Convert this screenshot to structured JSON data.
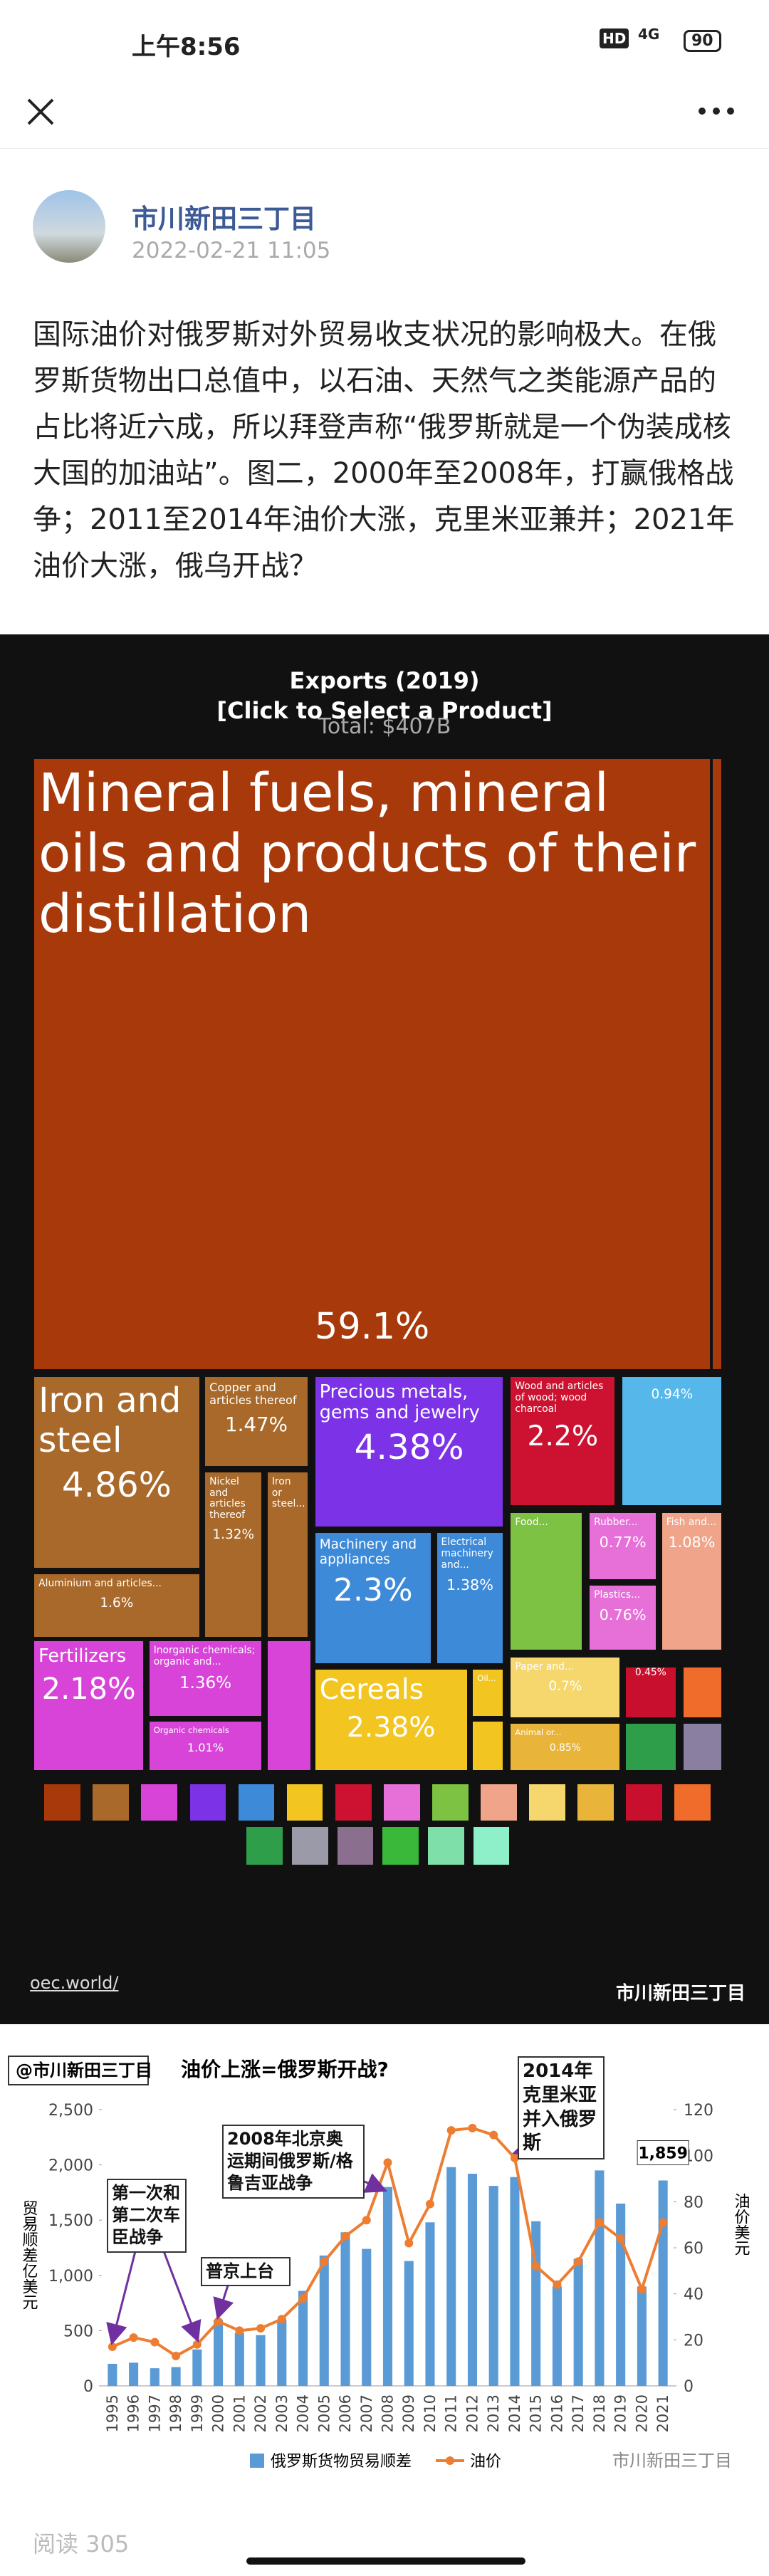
{
  "status_bar": {
    "time": "上午8:56",
    "hd": "HD",
    "network": "4G",
    "battery": "90"
  },
  "header": {
    "author": "市川新田三丁目",
    "date": "2022-02-21 11:05"
  },
  "article": {
    "text": "国际油价对俄罗斯对外贸易收支状况的影响极大。在俄罗斯货物出口总值中，以石油、天然气之类能源产品的占比将近六成，所以拜登声称“俄罗斯就是一个伪装成核大国的加油站”。图二，2000年至2008年，打赢俄格战争；2011至2014年油价大涨，克里米亚兼并；2021年油价大涨，俄乌开战？"
  },
  "treemap": {
    "title": "Exports (2019)",
    "subtitle": "[Click to Select a Product]",
    "total": "Total: $407B",
    "tiles": [
      {
        "label": "Mineral fuels, mineral oils and products of their distillation",
        "share": "59.1%"
      },
      {
        "label": "Iron and steel",
        "share": "4.86%"
      },
      {
        "label": "Aluminium and articles...",
        "share": "1.6%"
      },
      {
        "label": "Copper and articles thereof",
        "share": "1.47%"
      },
      {
        "label": "Nickel and articles thereof",
        "share": "1.32%"
      },
      {
        "label": "Iron or steel..."
      },
      {
        "label": "Precious metals, gems and jewelry",
        "share": "4.38%"
      },
      {
        "label": "Machinery and appliances",
        "share": "2.3%"
      },
      {
        "label": "Electrical machinery and...",
        "share": "1.38%"
      },
      {
        "label": "Wood and articles of wood; wood charcoal",
        "share": "2.2%"
      },
      {
        "share": "0.94%"
      },
      {
        "label": "Food..."
      },
      {
        "label": "Rubber...",
        "share": "0.77%"
      },
      {
        "label": "Plastics...",
        "share": "0.76%"
      },
      {
        "label": "Fish and...",
        "share": "1.08%"
      },
      {
        "label": "Fertilizers",
        "share": "2.18%"
      },
      {
        "label": "Inorganic chemicals; organic and...",
        "share": "1.36%"
      },
      {
        "label": "Organic chemicals",
        "share": "1.01%"
      },
      {
        "label": "Cereals",
        "share": "2.38%"
      },
      {
        "label": "Oil..."
      },
      {
        "label": "Paper and...",
        "share": "0.7%"
      },
      {
        "label": "Animal or...",
        "share": "0.85%"
      },
      {
        "share": "0.45%"
      }
    ],
    "source": "oec.world/",
    "watermark": "市川新田三丁目"
  },
  "chart": {
    "type": "bar",
    "title": "油价上涨=俄罗斯开战?",
    "badge": "@市川新田三丁目",
    "watermark": "市川新田三丁目",
    "y_label": "贸易顺差亿美元",
    "y2_label": "油价美元",
    "categories": [
      "1995",
      "1996",
      "1997",
      "1998",
      "1999",
      "2000",
      "2001",
      "2002",
      "2003",
      "2004",
      "2005",
      "2006",
      "2007",
      "2008",
      "2009",
      "2010",
      "2011",
      "2012",
      "2013",
      "2014",
      "2015",
      "2016",
      "2017",
      "2018",
      "2019",
      "2020",
      "2021"
    ],
    "series": [
      {
        "name": "俄罗斯货物贸易顺差",
        "color": "#5b9bd5",
        "values": [
          200,
          210,
          160,
          170,
          330,
          600,
          480,
          460,
          600,
          860,
          1180,
          1390,
          1240,
          1800,
          1130,
          1480,
          1980,
          1920,
          1810,
          1890,
          1490,
          900,
          1150,
          1950,
          1650,
          900,
          1859
        ],
        "value_labels": [
          null,
          null,
          null,
          null,
          null,
          null,
          null,
          null,
          null,
          null,
          null,
          null,
          null,
          null,
          null,
          null,
          null,
          null,
          null,
          null,
          null,
          null,
          null,
          null,
          null,
          null,
          "1,859"
        ]
      },
      {
        "name": "油价",
        "color": "#ed7d31",
        "type": "line",
        "axis": "y2",
        "values": [
          17,
          21,
          19,
          13,
          18,
          28,
          24,
          25,
          29,
          38,
          54,
          65,
          72,
          97,
          62,
          79,
          111,
          112,
          109,
          99,
          52,
          44,
          54,
          71,
          64,
          42,
          71
        ]
      }
    ],
    "ylim": [
      0,
      2500
    ],
    "yticks": [
      0,
      500,
      {
        "value": 1000,
        "label": "1,000"
      },
      {
        "value": 1500,
        "label": "1,500"
      },
      {
        "value": 2000,
        "label": "2,000"
      },
      {
        "value": 2500,
        "label": "2,500"
      }
    ],
    "y2lim": [
      0,
      120
    ],
    "y2ticks": [
      0,
      20,
      40,
      60,
      80,
      100,
      120
    ],
    "annotations": [
      "第一次和第二次车臣战争",
      "普京上台",
      "2008年北京奥运期间俄罗斯/格鲁吉亚战争",
      "2014年克里米亚并入俄罗斯"
    ]
  },
  "footer": {
    "reads": "阅读 305"
  }
}
